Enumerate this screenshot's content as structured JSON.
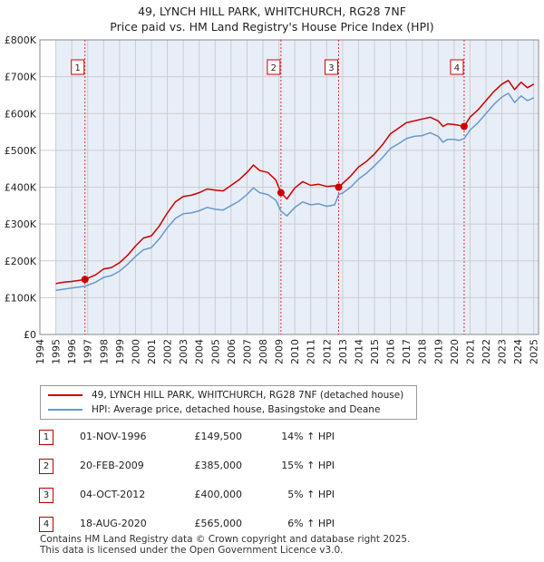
{
  "title_line1": "49, LYNCH HILL PARK, WHITCHURCH, RG28 7NF",
  "title_line2": "Price paid vs. HM Land Registry's House Price Index (HPI)",
  "colors": {
    "price": "#cc0000",
    "hpi": "#6699cc",
    "band": "#e8eef8",
    "grid": "#cccccc",
    "vline": "#cc3333"
  },
  "chart_data": {
    "type": "line",
    "title": "49, LYNCH HILL PARK, WHITCHURCH, RG28 7NF — Price paid vs. HM Land Registry's House Price Index (HPI)",
    "xlabel": "",
    "ylabel": "",
    "xlim": [
      1994,
      2025.3
    ],
    "ylim": [
      0,
      800000
    ],
    "y_ticks": [
      0,
      100000,
      200000,
      300000,
      400000,
      500000,
      600000,
      700000,
      800000
    ],
    "y_tick_labels": [
      "£0",
      "£100K",
      "£200K",
      "£300K",
      "£400K",
      "£500K",
      "£600K",
      "£700K",
      "£800K"
    ],
    "x_ticks": [
      1994,
      1995,
      1996,
      1997,
      1998,
      1999,
      2000,
      2001,
      2002,
      2003,
      2004,
      2005,
      2006,
      2007,
      2008,
      2009,
      2010,
      2011,
      2012,
      2013,
      2014,
      2015,
      2016,
      2017,
      2018,
      2019,
      2020,
      2021,
      2022,
      2023,
      2024,
      2025
    ],
    "x_tick_labels": [
      "1994",
      "1995",
      "1996",
      "1997",
      "1998",
      "1999",
      "2000",
      "2001",
      "2002",
      "2003",
      "2004",
      "2005",
      "2006",
      "2007",
      "2008",
      "2009",
      "2010",
      "2011",
      "2012",
      "2013",
      "2014",
      "2015",
      "2016",
      "2017",
      "2018",
      "2019",
      "2020",
      "2021",
      "2022",
      "2023",
      "2024",
      "2025"
    ],
    "shaded_years": [
      [
        1995,
        2025.3
      ]
    ],
    "series": [
      {
        "name": "49, LYNCH HILL PARK, WHITCHURCH, RG28 7NF (detached house)",
        "color": "#cc0000",
        "x": [
          1995.0,
          1995.5,
          1996.0,
          1996.5,
          1996.83,
          1997.5,
          1998.0,
          1998.5,
          1999.0,
          1999.5,
          2000.0,
          2000.5,
          2001.0,
          2001.5,
          2002.0,
          2002.5,
          2003.0,
          2003.5,
          2004.0,
          2004.5,
          2005.0,
          2005.5,
          2006.0,
          2006.5,
          2007.0,
          2007.4,
          2007.8,
          2008.3,
          2008.8,
          2009.13,
          2009.5,
          2010.0,
          2010.5,
          2011.0,
          2011.5,
          2012.0,
          2012.5,
          2012.75,
          2013.0,
          2013.5,
          2014.0,
          2014.5,
          2015.0,
          2015.5,
          2016.0,
          2016.5,
          2017.0,
          2017.5,
          2018.0,
          2018.5,
          2019.0,
          2019.3,
          2019.6,
          2020.0,
          2020.3,
          2020.63,
          2021.0,
          2021.5,
          2022.0,
          2022.5,
          2023.0,
          2023.4,
          2023.8,
          2024.2,
          2024.6,
          2025.0
        ],
        "values": [
          138000,
          142000,
          144000,
          147000,
          149500,
          162000,
          178000,
          182000,
          195000,
          215000,
          240000,
          262000,
          268000,
          295000,
          330000,
          360000,
          375000,
          378000,
          385000,
          395000,
          392000,
          390000,
          405000,
          420000,
          440000,
          460000,
          445000,
          440000,
          420000,
          385000,
          368000,
          398000,
          415000,
          405000,
          408000,
          402000,
          404000,
          400000,
          410000,
          430000,
          455000,
          470000,
          490000,
          515000,
          545000,
          560000,
          575000,
          580000,
          585000,
          590000,
          580000,
          565000,
          572000,
          570000,
          568000,
          565000,
          590000,
          610000,
          635000,
          660000,
          680000,
          690000,
          665000,
          685000,
          670000,
          680000
        ]
      },
      {
        "name": "HPI: Average price, detached house, Basingstoke and Deane",
        "color": "#6699cc",
        "x": [
          1995.0,
          1995.5,
          1996.0,
          1996.5,
          1996.83,
          1997.5,
          1998.0,
          1998.5,
          1999.0,
          1999.5,
          2000.0,
          2000.5,
          2001.0,
          2001.5,
          2002.0,
          2002.5,
          2003.0,
          2003.5,
          2004.0,
          2004.5,
          2005.0,
          2005.5,
          2006.0,
          2006.5,
          2007.0,
          2007.4,
          2007.8,
          2008.3,
          2008.8,
          2009.13,
          2009.5,
          2010.0,
          2010.5,
          2011.0,
          2011.5,
          2012.0,
          2012.5,
          2012.75,
          2013.0,
          2013.5,
          2014.0,
          2014.5,
          2015.0,
          2015.5,
          2016.0,
          2016.5,
          2017.0,
          2017.5,
          2018.0,
          2018.5,
          2019.0,
          2019.3,
          2019.6,
          2020.0,
          2020.3,
          2020.63,
          2021.0,
          2021.5,
          2022.0,
          2022.5,
          2023.0,
          2023.4,
          2023.8,
          2024.2,
          2024.6,
          2025.0
        ],
        "values": [
          120000,
          123000,
          126000,
          129000,
          131000,
          142000,
          155000,
          160000,
          172000,
          190000,
          212000,
          230000,
          236000,
          260000,
          290000,
          315000,
          328000,
          330000,
          336000,
          345000,
          340000,
          338000,
          350000,
          362000,
          380000,
          398000,
          385000,
          380000,
          365000,
          335000,
          322000,
          345000,
          360000,
          352000,
          355000,
          348000,
          352000,
          380000,
          384000,
          400000,
          422000,
          438000,
          458000,
          480000,
          505000,
          518000,
          532000,
          538000,
          540000,
          548000,
          538000,
          522000,
          530000,
          530000,
          527000,
          532000,
          555000,
          575000,
          600000,
          625000,
          645000,
          655000,
          630000,
          648000,
          635000,
          643000
        ]
      }
    ],
    "sale_markers": [
      {
        "label": "1",
        "year": 1996.83,
        "price": 149500
      },
      {
        "label": "2",
        "year": 2009.13,
        "price": 385000
      },
      {
        "label": "3",
        "year": 2012.75,
        "price": 400000
      },
      {
        "label": "4",
        "year": 2020.63,
        "price": 565000
      }
    ]
  },
  "legend": {
    "price_label": "49, LYNCH HILL PARK, WHITCHURCH, RG28 7NF (detached house)",
    "hpi_label": "HPI: Average price, detached house, Basingstoke and Deane"
  },
  "sales": [
    {
      "num": "1",
      "date": "01-NOV-1996",
      "price": "£149,500",
      "hpi": "14% ↑ HPI"
    },
    {
      "num": "2",
      "date": "20-FEB-2009",
      "price": "£385,000",
      "hpi": "15% ↑ HPI"
    },
    {
      "num": "3",
      "date": "04-OCT-2012",
      "price": "£400,000",
      "hpi": "5% ↑ HPI"
    },
    {
      "num": "4",
      "date": "18-AUG-2020",
      "price": "£565,000",
      "hpi": "6% ↑ HPI"
    }
  ],
  "footer": {
    "line1": "Contains HM Land Registry data © Crown copyright and database right 2025.",
    "line2": "This data is licensed under the Open Government Licence v3.0."
  }
}
